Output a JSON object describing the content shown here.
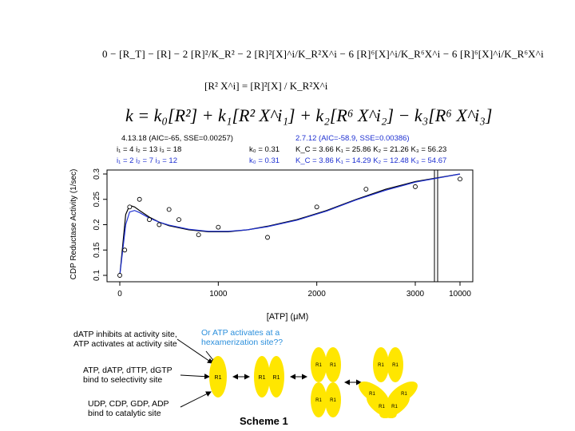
{
  "equations": {
    "line1": "0 − [R_T] − [R] − 2 [R]²/K_R² − 2 [R]²[X]^i/K_R²X^i − 6 [R]⁶[X]^i/K_R⁶X^i − 6 [R]⁶[X]^i/K_R⁶X^i",
    "line2": "[R² X^i] = [R]²[X] / K_R²X^i",
    "line3": "k = k₀[R²] + k₁[R² X^i₁] + k₂[R⁶ X^i₂] − k₃[R⁶ X^i₃]"
  },
  "fits": {
    "left": {
      "title": "4.13.18 (AIC=-65, SSE=0.00257)",
      "row1": "i₁ = 4   i₂ = 13   i₃ = 18",
      "row1k": "k₀ = 0.31",
      "row2": "i₁ = 2   i₂ = 7   i₃ = 12",
      "row2k": "k₀ = 0.31"
    },
    "right": {
      "title": "2.7.12 (AIC=-58.9, SSE=0.00386)",
      "row1": "K_C = 3.66   K₁ = 25.86   K₂ = 21.26   K₃ = 56.23",
      "row2": "K_C = 3.86   K₁ = 14.29   K₂ = 12.48   K₃ = 54.67"
    }
  },
  "chart_data": {
    "type": "scatter",
    "xlabel": "[ATP] (μM)",
    "ylabel": "CDP Reductase Activity (1/sec)",
    "x_ticks": [
      "0",
      "1000",
      "2000",
      "3000",
      "10000"
    ],
    "y_ticks": [
      "0.1",
      "0.15",
      "0.2",
      "0.25",
      "0.3"
    ],
    "ylim": [
      0.1,
      0.3
    ],
    "x_scale": "broken: linear 0–3000 then 3000–10000",
    "points": [
      {
        "x": 0,
        "y": 0.1
      },
      {
        "x": 50,
        "y": 0.15
      },
      {
        "x": 100,
        "y": 0.235
      },
      {
        "x": 200,
        "y": 0.25
      },
      {
        "x": 300,
        "y": 0.21
      },
      {
        "x": 400,
        "y": 0.2
      },
      {
        "x": 500,
        "y": 0.23
      },
      {
        "x": 600,
        "y": 0.21
      },
      {
        "x": 800,
        "y": 0.18
      },
      {
        "x": 1000,
        "y": 0.195
      },
      {
        "x": 1500,
        "y": 0.175
      },
      {
        "x": 2000,
        "y": 0.235
      },
      {
        "x": 2500,
        "y": 0.27
      },
      {
        "x": 3000,
        "y": 0.275
      },
      {
        "x": 10000,
        "y": 0.29
      }
    ],
    "series": [
      {
        "color": "#000000",
        "x": [
          0,
          30,
          60,
          100,
          150,
          200,
          300,
          400,
          500,
          700,
          900,
          1100,
          1300,
          1500,
          1800,
          2100,
          2400,
          2700,
          3000,
          10000
        ],
        "y": [
          0.1,
          0.16,
          0.22,
          0.238,
          0.235,
          0.228,
          0.215,
          0.205,
          0.198,
          0.19,
          0.186,
          0.186,
          0.19,
          0.197,
          0.21,
          0.228,
          0.25,
          0.27,
          0.285,
          0.3
        ]
      },
      {
        "color": "#1d2fd1",
        "x": [
          0,
          30,
          60,
          100,
          150,
          200,
          300,
          400,
          500,
          700,
          900,
          1100,
          1300,
          1500,
          1800,
          2100,
          2400,
          2700,
          3000,
          10000
        ],
        "y": [
          0.1,
          0.15,
          0.2,
          0.225,
          0.228,
          0.224,
          0.213,
          0.205,
          0.199,
          0.191,
          0.187,
          0.187,
          0.19,
          0.196,
          0.209,
          0.227,
          0.249,
          0.268,
          0.284,
          0.3
        ]
      }
    ]
  },
  "scheme": {
    "text1a": "dATP inhibits at activity site,",
    "text1b": "ATP activates at activity site",
    "text2a": "Or ATP activates at a",
    "text2b": "hexamerization site??",
    "text3a": "ATP, dATP, dTTP, dGTP",
    "text3b": "bind to selectivity site",
    "text4a": "UDP, CDP, GDP, ADP",
    "text4b": "bind to catalytic site",
    "title": "Scheme 1",
    "labels": {
      "monomer": "R1",
      "dimer": "R1",
      "tetramer": "R1",
      "tetramer_bottom": "R1",
      "hex_top": "R1",
      "hex_left": "R1",
      "hex_right": "R1"
    }
  }
}
